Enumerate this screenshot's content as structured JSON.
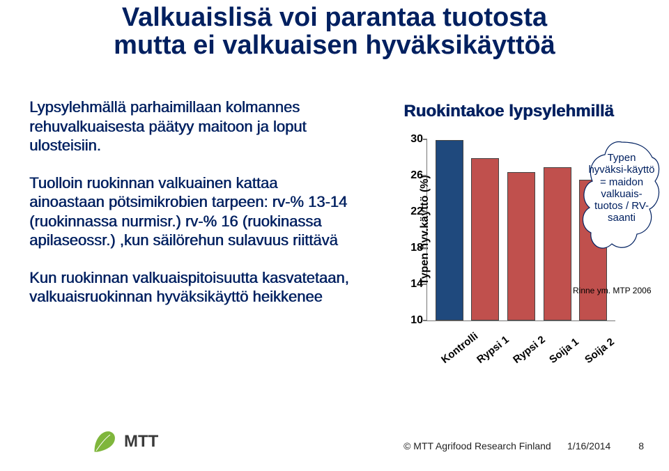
{
  "title": {
    "line1": "Valkuaislisä voi parantaa tuotosta",
    "line2": "mutta ei valkuaisen hyväksikäyttöä",
    "color": "#002060",
    "fontsize": 38
  },
  "paragraphs": {
    "p1": "Lypsylehmällä parhaimillaan kolmannes rehuvalkuaisesta päätyy maitoon ja loput ulosteisiin.",
    "p2": "Tuolloin ruokinnan valkuainen kattaa ainoastaan pötsimikrobien tarpeen: rv-% 13-14 (ruokinnassa nurmisr.) rv-% 16 (ruokinassa apilaseossr.) ,kun säilörehun sulavuus riittävä",
    "p3": "Kun ruokinnan valkuaispitoisuutta kasvatetaan, valkuaisruokinnan hyväksikäyttö heikkenee",
    "fontsize": 22,
    "color": "#002060"
  },
  "chart": {
    "title": "Ruokintakoe lypsylehmillä",
    "type": "bar",
    "ylabel": "Typen hyv.käyttö (%)",
    "ylim": [
      10,
      30
    ],
    "ytick_step": 4,
    "yticks": [
      10,
      14,
      18,
      22,
      26,
      30
    ],
    "categories": [
      "Kontrolli",
      "Rypsi 1",
      "Rypsi 2",
      "Soija 1",
      "Soija 2"
    ],
    "values": [
      29.8,
      27.8,
      26.2,
      26.8,
      25.4
    ],
    "bar_colors": [
      "#1f497d",
      "#c0504d",
      "#c0504d",
      "#c0504d",
      "#c0504d"
    ],
    "bar_border": "#444444",
    "bar_width": 0.65,
    "axis_color": "#777777",
    "tick_fontsize": 16,
    "x_rotation_deg": -38,
    "background_color": "#ffffff"
  },
  "cloud": {
    "text": "Typen hyväksi-käyttö = maidon valkuais-tuotos / RV-saanti",
    "fill": "#ffffff",
    "stroke": "#002060",
    "text_color": "#002060"
  },
  "citation": "Rinne ym. MTP 2006",
  "footer": {
    "org": "© MTT Agrifood Research Finland",
    "date": "1/16/2014",
    "page": "8",
    "logo_text": "MTT",
    "logo_green": "#7fb63c",
    "logo_text_color": "#3a3a3a"
  }
}
